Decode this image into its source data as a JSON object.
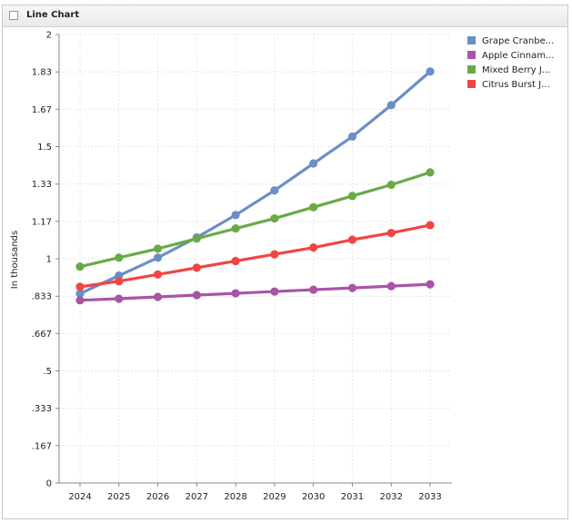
{
  "panel": {
    "title": "Line Chart"
  },
  "chart_data": {
    "type": "line",
    "title": "",
    "xlabel": "",
    "ylabel": "In thousands",
    "ylim": [
      0,
      2
    ],
    "y_ticks": [
      "0",
      ".167",
      ".333",
      ".5",
      ".667",
      ".833",
      "1",
      "1.17",
      "1.33",
      "1.5",
      "1.67",
      "1.83",
      "2"
    ],
    "y_tick_values": [
      0,
      0.167,
      0.333,
      0.5,
      0.667,
      0.833,
      1,
      1.167,
      1.333,
      1.5,
      1.667,
      1.833,
      2
    ],
    "grid": true,
    "legend_position": "top-right",
    "x": [
      "2024",
      "2025",
      "2026",
      "2027",
      "2028",
      "2029",
      "2030",
      "2031",
      "2032",
      "2033"
    ],
    "series": [
      {
        "name": "Grape Cranbe...",
        "color": "#6a8fc6",
        "values": [
          0.845,
          0.925,
          1.005,
          1.095,
          1.195,
          1.305,
          1.425,
          1.545,
          1.685,
          1.835
        ]
      },
      {
        "name": "Apple Cinnam...",
        "color": "#a855a6",
        "values": [
          0.815,
          0.822,
          0.83,
          0.838,
          0.846,
          0.854,
          0.862,
          0.87,
          0.878,
          0.886
        ]
      },
      {
        "name": "Mixed Berry J...",
        "color": "#6aaa45",
        "values": [
          0.965,
          1.005,
          1.045,
          1.09,
          1.135,
          1.18,
          1.23,
          1.28,
          1.33,
          1.385
        ]
      },
      {
        "name": "Citrus Burst J...",
        "color": "#f04545",
        "values": [
          0.875,
          0.9,
          0.93,
          0.96,
          0.99,
          1.02,
          1.05,
          1.085,
          1.115,
          1.15
        ]
      }
    ]
  }
}
